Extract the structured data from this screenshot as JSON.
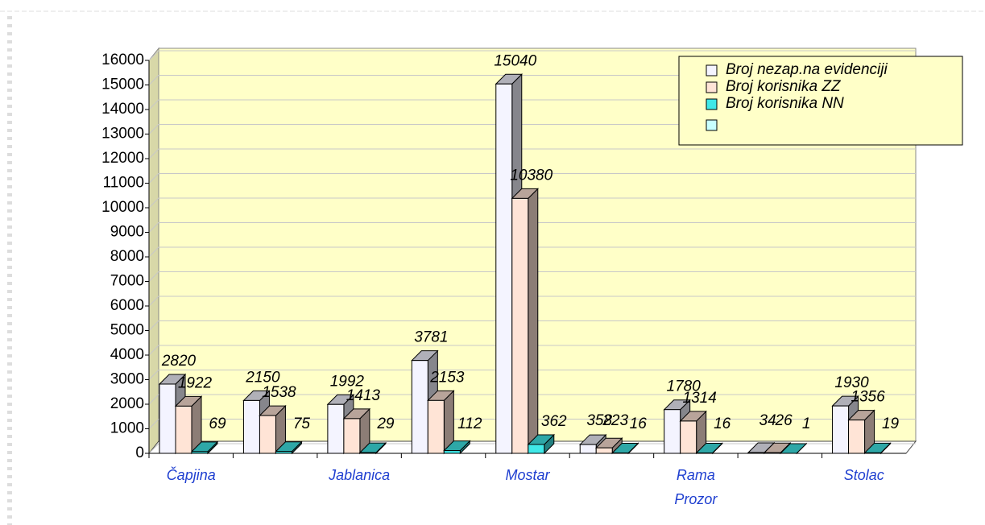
{
  "chart_data": {
    "type": "bar3d",
    "categories": [
      "Čapjina",
      null,
      "Jablanica",
      null,
      "Mostar",
      null,
      "Rama Prozor",
      null,
      "Stolac"
    ],
    "series": [
      {
        "name": "Broj nezap.na evidenciji",
        "color": "#f4f4ff",
        "values": [
          2820,
          2150,
          1992,
          3781,
          15040,
          358,
          1780,
          34,
          1930
        ]
      },
      {
        "name": "Broj korisnika ZZ",
        "color": "#ffe4d6",
        "values": [
          1922,
          1538,
          1413,
          2153,
          10380,
          223,
          1314,
          26,
          1356
        ]
      },
      {
        "name": "Broj korisnika  NN",
        "color": "#40e8e8",
        "values": [
          69,
          75,
          29,
          112,
          362,
          16,
          16,
          1,
          19
        ]
      }
    ],
    "ylim": [
      0,
      16000
    ],
    "yticks": [
      0,
      1000,
      2000,
      3000,
      4000,
      5000,
      6000,
      7000,
      8000,
      9000,
      10000,
      11000,
      12000,
      13000,
      14000,
      15000,
      16000
    ],
    "grid": true,
    "legend": "top-right"
  }
}
